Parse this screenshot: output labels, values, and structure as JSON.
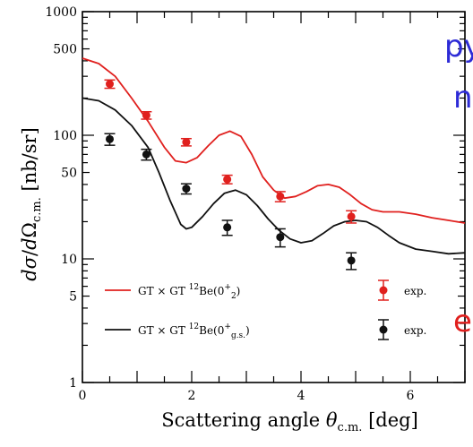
{
  "fragments": [
    {
      "text": "py",
      "color": "#2d2bd6",
      "name": "clipped-text-blue-1"
    },
    {
      "text": "n",
      "color": "#2d2bd6",
      "name": "clipped-text-blue-2"
    },
    {
      "text": "e",
      "color": "#e0201e",
      "name": "clipped-text-red"
    }
  ],
  "chart_data": {
    "type": "scatter",
    "title": "",
    "xlabel": "Scattering angle θc.m. [deg]",
    "ylabel": "dσ/dΩc.m. [nb/sr]",
    "xlim": [
      0,
      7
    ],
    "ylim": [
      1,
      1000
    ],
    "y_scale": "log",
    "grid": false,
    "legend_position": "bottom",
    "x_ticks": [
      0,
      2,
      4,
      6
    ],
    "y_tick_labels": [
      {
        "value": 1,
        "label": "1"
      },
      {
        "value": 5,
        "label": "5"
      },
      {
        "value": 10,
        "label": "10"
      },
      {
        "value": 50,
        "label": "50"
      },
      {
        "value": 100,
        "label": "100"
      },
      {
        "value": 500,
        "label": "500"
      },
      {
        "value": 1000,
        "label": "1000"
      }
    ],
    "series": [
      {
        "name": "GT × GT 12Be(0+2)",
        "kind": "line",
        "color": "#e0201e",
        "x": [
          0,
          0.3,
          0.6,
          0.9,
          1.2,
          1.5,
          1.7,
          1.9,
          2.1,
          2.3,
          2.5,
          2.7,
          2.9,
          3.1,
          3.3,
          3.5,
          3.7,
          3.9,
          4.1,
          4.3,
          4.5,
          4.7,
          4.9,
          5.1,
          5.3,
          5.5,
          5.8,
          6.1,
          6.4,
          6.7,
          7.0
        ],
        "y": [
          420,
          380,
          300,
          200,
          130,
          80,
          62,
          60,
          66,
          82,
          100,
          108,
          98,
          70,
          46,
          36,
          31,
          32,
          35,
          39,
          40,
          38,
          33,
          28,
          25,
          24,
          24,
          23,
          21.5,
          20.5,
          19.5
        ]
      },
      {
        "name": "GT × GT 12Be(0+g.s.)",
        "kind": "line",
        "color": "#111111",
        "x": [
          0,
          0.3,
          0.6,
          0.9,
          1.2,
          1.4,
          1.6,
          1.8,
          1.9,
          2.0,
          2.2,
          2.4,
          2.6,
          2.8,
          3.0,
          3.2,
          3.4,
          3.6,
          3.8,
          4.0,
          4.2,
          4.4,
          4.6,
          4.8,
          5.0,
          5.2,
          5.4,
          5.6,
          5.8,
          6.1,
          6.4,
          6.7,
          7.0
        ],
        "y": [
          200,
          190,
          160,
          120,
          80,
          50,
          30,
          19,
          17.5,
          18,
          22,
          28,
          34,
          36,
          33,
          27,
          21,
          17,
          14.5,
          13.5,
          14,
          16,
          18.5,
          20,
          20.5,
          20,
          18,
          15.5,
          13.5,
          12,
          11.5,
          11,
          11.2
        ]
      },
      {
        "name": "exp.",
        "kind": "points",
        "color": "#e0201e",
        "x": [
          0.5,
          1.17,
          1.9,
          2.65,
          3.62,
          4.92
        ],
        "y": [
          260,
          145,
          88,
          44,
          32,
          22
        ],
        "err": [
          20,
          10,
          6,
          3.5,
          3,
          2.5
        ]
      },
      {
        "name": "exp.",
        "kind": "points",
        "color": "#111111",
        "x": [
          0.5,
          1.17,
          1.9,
          2.65,
          3.62,
          4.92
        ],
        "y": [
          93,
          70,
          37,
          18,
          15,
          9.7
        ],
        "err": [
          10,
          7,
          3.5,
          2.5,
          2.5,
          1.5
        ]
      }
    ],
    "legend": [
      {
        "label": "GT × GT 12Be(0+2)",
        "color": "#e0201e",
        "kind": "line"
      },
      {
        "label": "exp.",
        "color": "#e0201e",
        "kind": "point"
      },
      {
        "label": "GT × GT 12Be(0+g.s.)",
        "color": "#111111",
        "kind": "line"
      },
      {
        "label": "exp.",
        "color": "#111111",
        "kind": "point"
      }
    ]
  }
}
